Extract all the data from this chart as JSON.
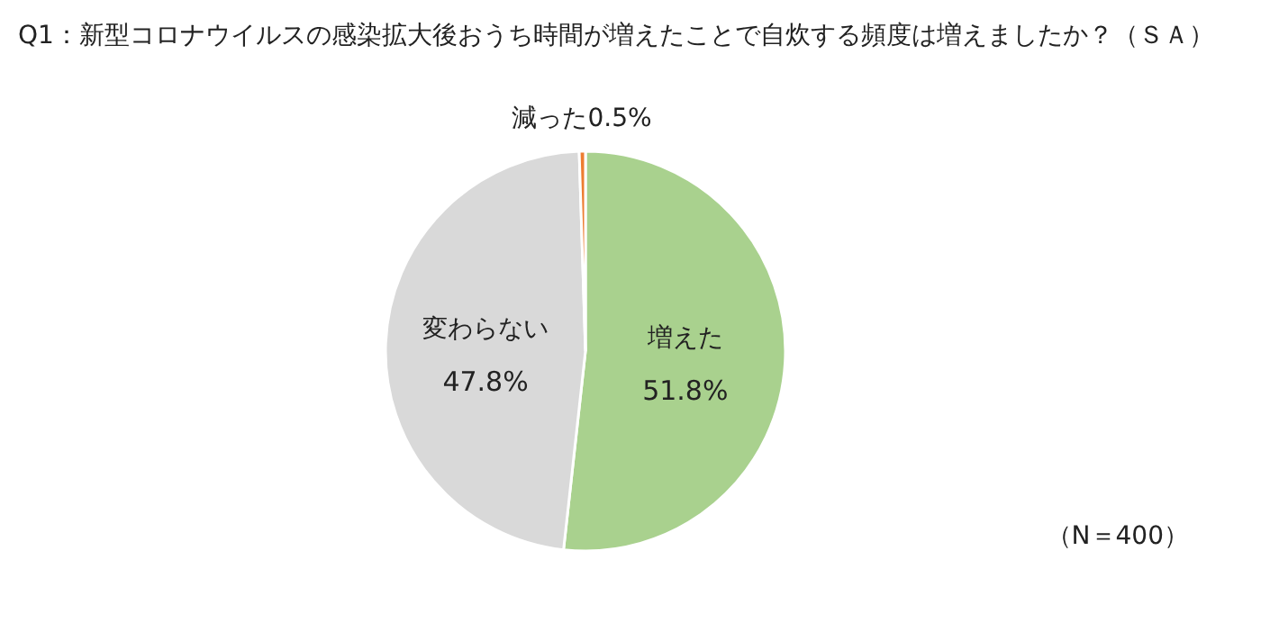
{
  "chart_data": {
    "type": "pie",
    "title": "Q1：新型コロナウイルスの感染拡大後おうち時間が増えたことで自炊する頻度は増えましたか？（ＳＡ）",
    "categories": [
      "増えた",
      "変わらない",
      "減った"
    ],
    "values": [
      51.8,
      47.8,
      0.5
    ],
    "value_labels": [
      "51.8%",
      "47.8%",
      "0.5%"
    ],
    "colors": [
      "#a9d18e",
      "#d9d9d9",
      "#ed7d31"
    ],
    "annotations": [
      "（N＝400）"
    ],
    "legend": false
  }
}
